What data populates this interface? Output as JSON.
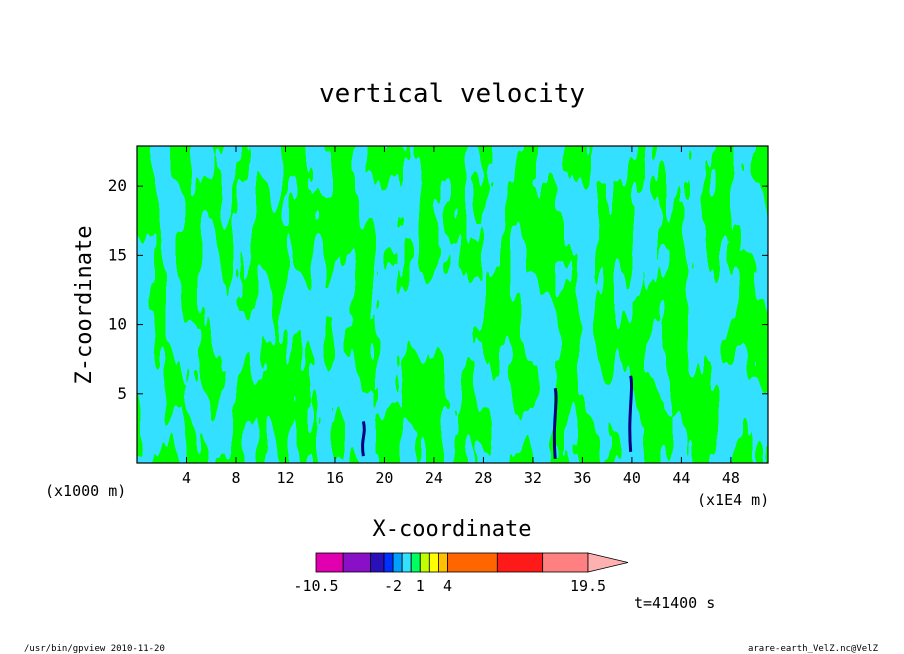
{
  "chart_data": {
    "type": "heatmap",
    "title": "vertical velocity",
    "xlabel": "X-coordinate",
    "ylabel": "Z-coordinate",
    "x_unit_left": "(x1000 m)",
    "x_unit_right": "(x1E4 m)",
    "xlim": [
      0,
      51
    ],
    "ylim": [
      0,
      22.9
    ],
    "x_ticks": [
      4,
      8,
      12,
      16,
      20,
      24,
      28,
      32,
      36,
      40,
      44,
      48
    ],
    "y_ticks": [
      5,
      10,
      15,
      20
    ],
    "grid": false,
    "contour_colors": {
      "positive_weak": "#00ff00",
      "negative_weak": "#33e0ff",
      "strong_negative": "#000080"
    },
    "colorbar": {
      "colors": [
        "#e000b0",
        "#8a10c8",
        "#2a10b8",
        "#0030ff",
        "#00a0ff",
        "#33e0ff",
        "#00ff60",
        "#c0ff00",
        "#ffff00",
        "#ffc000",
        "#ff6600",
        "#ff1a1a",
        "#ff8080"
      ],
      "boundaries": [
        -10.5,
        -7.5,
        -4.5,
        -3,
        -2,
        -1,
        0,
        1,
        2,
        3,
        4,
        9.5,
        14.5,
        19.5
      ],
      "tick_labels": [
        "-10.5",
        "-2",
        "1",
        "4",
        "19.5"
      ],
      "extend": "max",
      "extend_color": "#ffb0b0"
    },
    "annotation_time": "t=41400 s"
  },
  "footer": {
    "left": "/usr/bin/gpview  2010-11-20",
    "right": "arare-earth_VelZ.nc@VelZ"
  }
}
